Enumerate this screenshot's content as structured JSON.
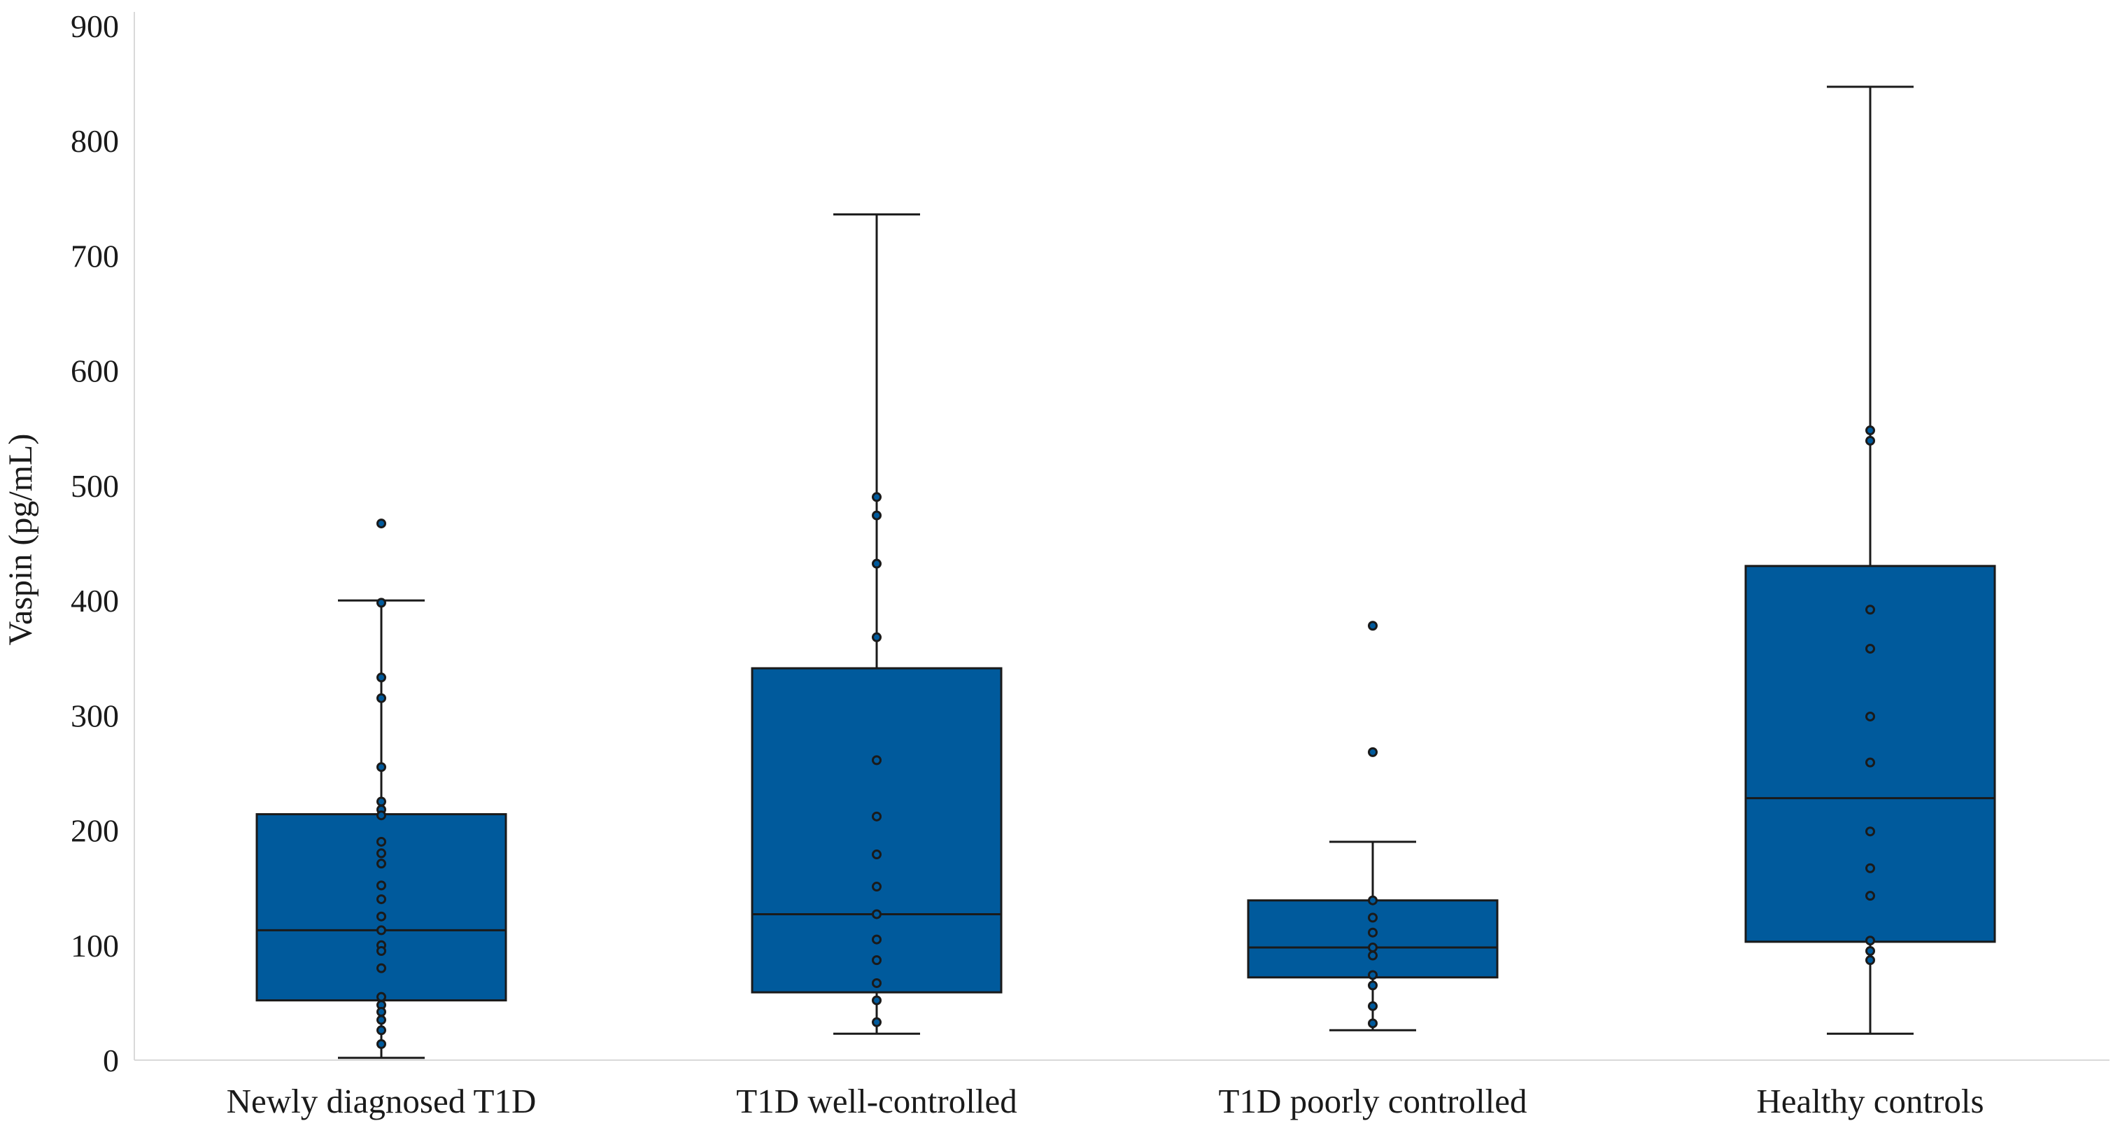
{
  "chart_data": {
    "type": "box",
    "title": "",
    "xlabel": "",
    "ylabel": "Vaspin (pg/mL)",
    "ylim": [
      0,
      900
    ],
    "yticks": [
      0,
      100,
      200,
      300,
      400,
      500,
      600,
      700,
      800,
      900
    ],
    "grid": false,
    "colors": {
      "box_fill": "#005a9c",
      "point_fill": "#005a9c",
      "axis": "#d9d9d9",
      "stroke": "#1a1a1a"
    },
    "categories": [
      "Newly diagnosed T1D",
      "T1D well-controlled",
      "T1D poorly controlled",
      "Healthy controls"
    ],
    "groups": [
      {
        "name": "Newly diagnosed T1D",
        "whisker_low": 2,
        "q1": 52,
        "median": 113,
        "q3": 214,
        "whisker_high": 400,
        "points": [
          467,
          398,
          333,
          315,
          255,
          225,
          218,
          213,
          190,
          180,
          171,
          152,
          140,
          125,
          113,
          100,
          95,
          80,
          55,
          48,
          42,
          35,
          26,
          14
        ]
      },
      {
        "name": "T1D well-controlled",
        "whisker_low": 23,
        "q1": 59,
        "median": 127,
        "q3": 341,
        "whisker_high": 736,
        "points": [
          490,
          474,
          432,
          368,
          261,
          212,
          179,
          151,
          127,
          105,
          87,
          67,
          52,
          33
        ]
      },
      {
        "name": "T1D poorly controlled",
        "whisker_low": 26,
        "q1": 72,
        "median": 98,
        "q3": 139,
        "whisker_high": 190,
        "points": [
          378,
          268,
          139,
          124,
          111,
          98,
          91,
          74,
          65,
          47,
          32
        ]
      },
      {
        "name": "Healthy controls",
        "whisker_low": 23,
        "q1": 103,
        "median": 228,
        "q3": 430,
        "whisker_high": 847,
        "points": [
          548,
          539,
          392,
          358,
          299,
          259,
          199,
          167,
          143,
          104,
          95,
          87
        ]
      }
    ]
  }
}
